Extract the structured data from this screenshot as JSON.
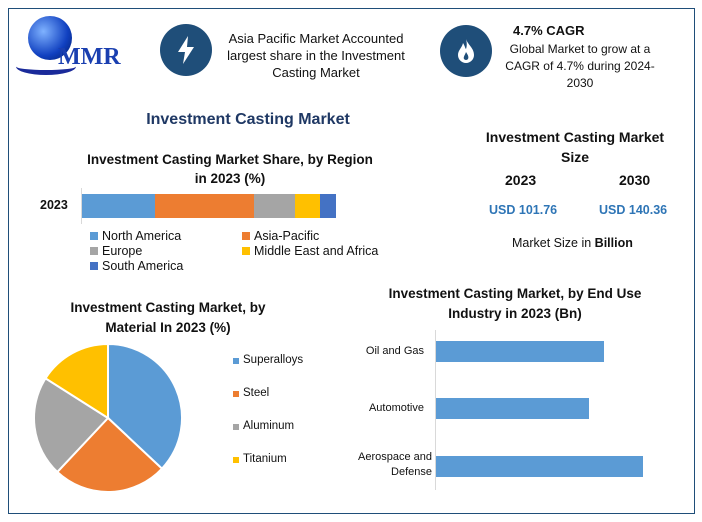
{
  "header": {
    "logo_text": "MMR",
    "highlight1": "Asia Pacific Market Accounted largest share in the Investment Casting Market",
    "cagr_title": "4.7% CAGR",
    "cagr_text": "Global Market to grow at a CAGR of 4.7% during 2024-2030"
  },
  "main_title": "Investment Casting Market",
  "market_size": {
    "title": "Investment Casting Market Size",
    "year1": "2023",
    "year2": "2030",
    "value1": "USD 101.76",
    "value2": "USD 140.36",
    "note_prefix": "Market Size in ",
    "note_bold": "Billion"
  },
  "colors": {
    "accent": "#1f4e79",
    "blue": "#5b9bd5",
    "orange": "#ed7d31",
    "gray": "#a5a5a5",
    "yellow": "#ffc000",
    "darkblue": "#4472c4",
    "value": "#2e75b6"
  },
  "chart_data": [
    {
      "type": "bar",
      "stacked": true,
      "orientation": "horizontal",
      "title": "Investment Casting Market Share, by Region in 2023 (%)",
      "categories": [
        "2023"
      ],
      "series": [
        {
          "name": "North America",
          "values": [
            28.7
          ]
        },
        {
          "name": "Asia-Pacific",
          "values": [
            39.0
          ]
        },
        {
          "name": "Europe",
          "values": [
            16.1
          ]
        },
        {
          "name": "Middle East and Africa",
          "values": [
            9.8
          ]
        },
        {
          "name": "South America",
          "values": [
            6.3
          ]
        }
      ],
      "legend": "bottom"
    },
    {
      "type": "pie",
      "title": "Investment Casting Market, by Material In 2023 (%)",
      "categories": [
        "Superalloys",
        "Steel",
        "Aluminum",
        "Titanium"
      ],
      "values": [
        37,
        25,
        22,
        16
      ],
      "legend": "right"
    },
    {
      "type": "bar",
      "orientation": "horizontal",
      "title": "Investment Casting Market, by End Use Industry in 2023 (Bn)",
      "categories": [
        "Oil and Gas",
        "Automotive",
        "Aerospace and Defense"
      ],
      "values": [
        0.81,
        0.74,
        1.0
      ]
    }
  ]
}
